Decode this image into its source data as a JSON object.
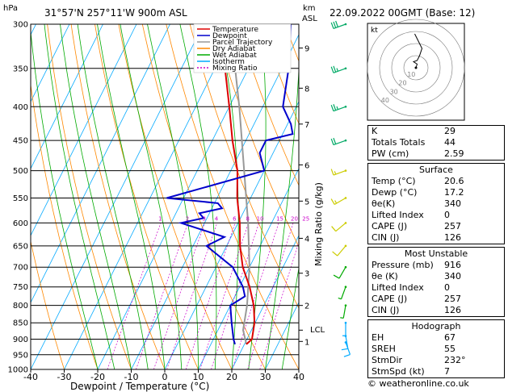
{
  "header": {
    "hpa_label": "hPa",
    "location": "31°57'N  257°11'W  900m  ASL",
    "km_label": "km",
    "asl_label": "ASL",
    "datetime": "22.09.2022  00GMT  (Base: 12)"
  },
  "legend": [
    {
      "label": "Temperature",
      "color": "#dd0000",
      "dash": ""
    },
    {
      "label": "Dewpoint",
      "color": "#0000cc",
      "dash": ""
    },
    {
      "label": "Parcel Trajectory",
      "color": "#999999",
      "dash": ""
    },
    {
      "label": "Dry Adiabat",
      "color": "#ff8800",
      "dash": ""
    },
    {
      "label": "Wet Adiabat",
      "color": "#00aa00",
      "dash": ""
    },
    {
      "label": "Isotherm",
      "color": "#00aaff",
      "dash": ""
    },
    {
      "label": "Mixing Ratio",
      "color": "#cc00cc",
      "dash": "2,2"
    }
  ],
  "mixing_ratio_labels": [
    "1",
    "2",
    "3",
    "4",
    "6",
    "8",
    "10",
    "15",
    "20",
    "25"
  ],
  "lcl_label": "LCL",
  "mixing_axis_label": "Mixing Ratio (g/kg)",
  "hodograph": {
    "kt_label": "kt",
    "ring_labels": [
      "10",
      "20",
      "30",
      "40"
    ]
  },
  "indices": [
    {
      "name": "K",
      "value": "29"
    },
    {
      "name": "Totals Totals",
      "value": "44"
    },
    {
      "name": "PW (cm)",
      "value": "2.59"
    }
  ],
  "surface": {
    "title": "Surface",
    "rows": [
      {
        "name": "Temp (°C)",
        "value": "20.6"
      },
      {
        "name": "Dewp (°C)",
        "value": "17.2"
      },
      {
        "name": "θe(K)",
        "value": "340"
      },
      {
        "name": "Lifted Index",
        "value": "0"
      },
      {
        "name": "CAPE (J)",
        "value": "257"
      },
      {
        "name": "CIN (J)",
        "value": "126"
      }
    ]
  },
  "most_unstable": {
    "title": "Most Unstable",
    "rows": [
      {
        "name": "Pressure (mb)",
        "value": "916"
      },
      {
        "name": "θe (K)",
        "value": "340"
      },
      {
        "name": "Lifted Index",
        "value": "0"
      },
      {
        "name": "CAPE (J)",
        "value": "257"
      },
      {
        "name": "CIN (J)",
        "value": "126"
      }
    ]
  },
  "hodograph_table": {
    "title": "Hodograph",
    "rows": [
      {
        "name": "EH",
        "value": "67"
      },
      {
        "name": "SREH",
        "value": "55"
      },
      {
        "name": "StmDir",
        "value": "232°"
      },
      {
        "name": "StmSpd (kt)",
        "value": "7"
      }
    ]
  },
  "credit": "© weatheronline.co.uk",
  "chart_data": {
    "type": "skew-t",
    "xlabel": "Dewpoint / Temperature (°C)",
    "ylabel": "hPa",
    "x_ticks": [
      -40,
      -30,
      -20,
      -10,
      0,
      10,
      20,
      30,
      40
    ],
    "pressure_levels": [
      300,
      350,
      400,
      450,
      500,
      550,
      600,
      650,
      700,
      750,
      800,
      850,
      900,
      950,
      1000
    ],
    "km_ticks": [
      {
        "label": "1",
        "p": 907
      },
      {
        "label": "2",
        "p": 800
      },
      {
        "label": "3",
        "p": 715
      },
      {
        "label": "4",
        "p": 633
      },
      {
        "label": "5",
        "p": 556
      },
      {
        "label": "6",
        "p": 490
      },
      {
        "label": "7",
        "p": 425
      },
      {
        "label": "8",
        "p": 375
      },
      {
        "label": "9",
        "p": 326
      }
    ],
    "lcl_p": 872,
    "temperature": [
      [
        916,
        20.6
      ],
      [
        900,
        21.5
      ],
      [
        850,
        19.8
      ],
      [
        800,
        17
      ],
      [
        750,
        13
      ],
      [
        700,
        8
      ],
      [
        650,
        4
      ],
      [
        600,
        0.5
      ],
      [
        550,
        -4
      ],
      [
        500,
        -8
      ],
      [
        450,
        -14
      ],
      [
        400,
        -20
      ],
      [
        350,
        -27
      ],
      [
        300,
        -34
      ]
    ],
    "dewpoint": [
      [
        916,
        17.2
      ],
      [
        900,
        16
      ],
      [
        850,
        13
      ],
      [
        800,
        10
      ],
      [
        775,
        13
      ],
      [
        750,
        11
      ],
      [
        700,
        5
      ],
      [
        650,
        -6
      ],
      [
        630,
        -2
      ],
      [
        600,
        -17
      ],
      [
        590,
        -11
      ],
      [
        580,
        -13
      ],
      [
        570,
        -7
      ],
      [
        560,
        -9
      ],
      [
        550,
        -25
      ],
      [
        500,
        0
      ],
      [
        470,
        -4
      ],
      [
        450,
        -4
      ],
      [
        440,
        3
      ],
      [
        425,
        1
      ],
      [
        400,
        -4
      ],
      [
        350,
        -8
      ],
      [
        300,
        -14
      ]
    ],
    "parcel": [
      [
        916,
        20.6
      ],
      [
        872,
        17.5
      ],
      [
        800,
        15
      ],
      [
        700,
        10
      ],
      [
        600,
        3
      ],
      [
        500,
        -6
      ],
      [
        400,
        -17
      ],
      [
        300,
        -32
      ]
    ],
    "hodograph_uv": [
      [
        0,
        0
      ],
      [
        1,
        3
      ],
      [
        -2,
        5
      ],
      [
        1,
        6
      ],
      [
        3,
        10
      ],
      [
        5,
        16
      ],
      [
        2,
        22
      ],
      [
        -1,
        28
      ]
    ],
    "wind_barbs": [
      {
        "p": 910,
        "dir": 160,
        "spd": 10
      },
      {
        "p": 890,
        "dir": 170,
        "spd": 10
      },
      {
        "p": 850,
        "dir": 180,
        "spd": 5
      },
      {
        "p": 800,
        "dir": 190,
        "spd": 5
      },
      {
        "p": 750,
        "dir": 200,
        "spd": 5
      },
      {
        "p": 700,
        "dir": 210,
        "spd": 10
      },
      {
        "p": 650,
        "dir": 220,
        "spd": 10
      },
      {
        "p": 600,
        "dir": 230,
        "spd": 10
      },
      {
        "p": 550,
        "dir": 240,
        "spd": 15
      },
      {
        "p": 500,
        "dir": 250,
        "spd": 15
      },
      {
        "p": 450,
        "dir": 250,
        "spd": 20
      },
      {
        "p": 400,
        "dir": 250,
        "spd": 25
      },
      {
        "p": 350,
        "dir": 250,
        "spd": 25
      },
      {
        "p": 300,
        "dir": 250,
        "spd": 30
      }
    ]
  }
}
